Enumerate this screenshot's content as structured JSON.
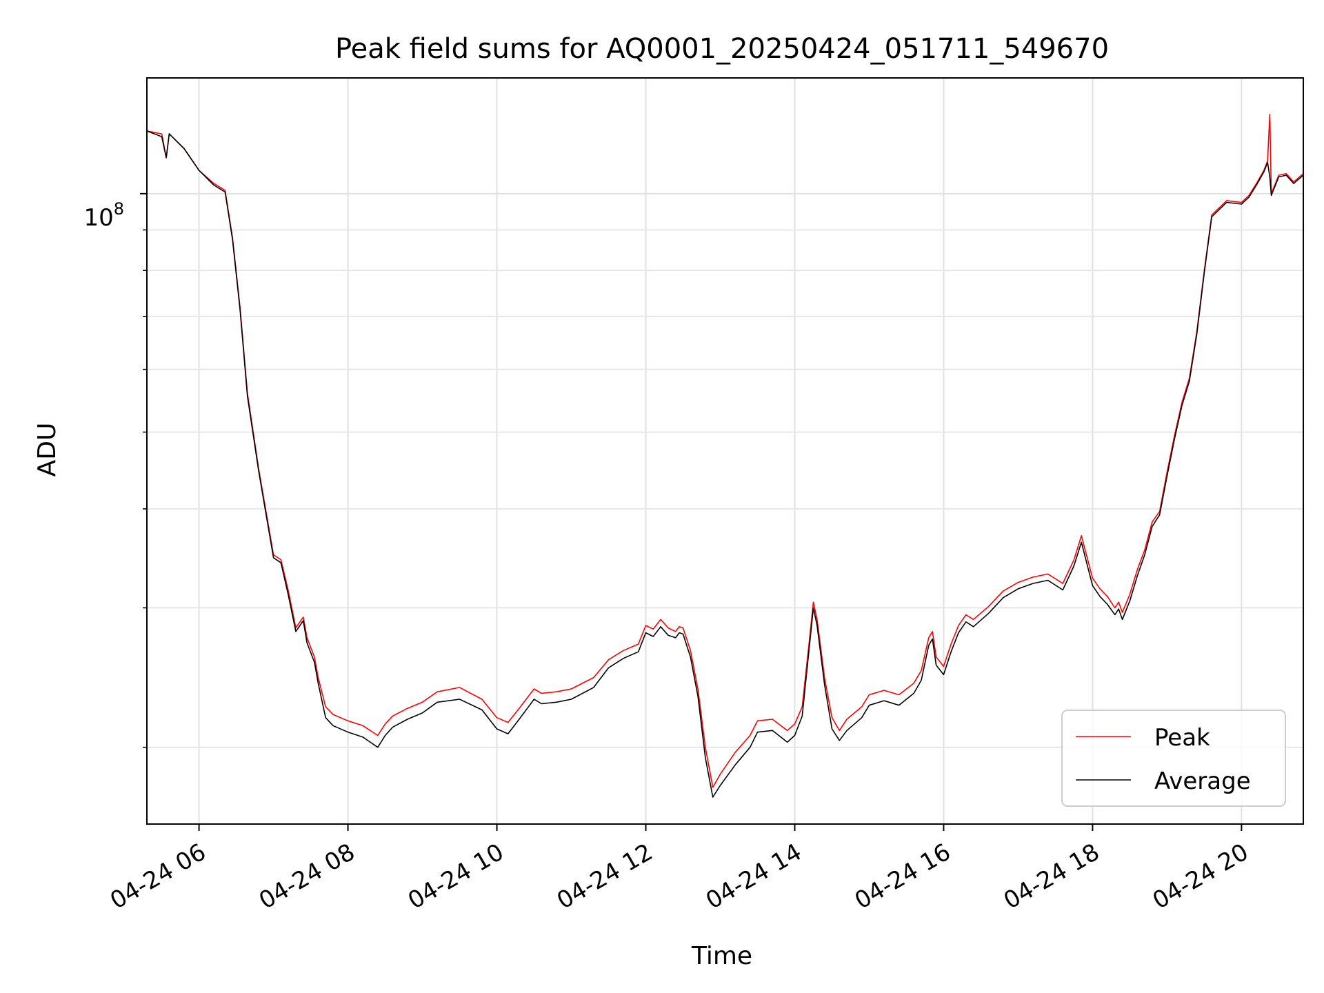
{
  "chart_data": {
    "type": "line",
    "title": "Peak field sums for AQ0001_20250424_051711_549670",
    "xlabel": "Time",
    "ylabel": "ADU",
    "yscale": "log",
    "grid": true,
    "legend_placement": "lower-right",
    "x_unit": "hours of day (2025-04-24)",
    "xlim": [
      5.3,
      20.83
    ],
    "ylim": [
      16000000,
      140000000
    ],
    "x_ticks": [
      6,
      8,
      10,
      12,
      14,
      16,
      18,
      20
    ],
    "x_tick_labels": [
      "04-24 06",
      "04-24 08",
      "04-24 10",
      "04-24 12",
      "04-24 14",
      "04-24 16",
      "04-24 18",
      "04-24 20"
    ],
    "y_major_ticks": [
      100000000
    ],
    "y_major_tick_base": "10",
    "y_major_tick_exp": "8",
    "y_minor_ticks": [
      20000000,
      30000000,
      40000000,
      50000000,
      60000000,
      70000000,
      80000000,
      90000000
    ],
    "colors": {
      "Peak": "#ff0000",
      "Average": "#000000"
    },
    "x": [
      5.3,
      5.5,
      5.56,
      5.6,
      5.8,
      6.0,
      6.2,
      6.35,
      6.45,
      6.55,
      6.65,
      6.8,
      7.0,
      7.1,
      7.2,
      7.3,
      7.4,
      7.45,
      7.55,
      7.6,
      7.7,
      7.8,
      8.0,
      8.2,
      8.4,
      8.5,
      8.6,
      8.8,
      9.0,
      9.2,
      9.5,
      9.8,
      10.0,
      10.15,
      10.3,
      10.5,
      10.6,
      10.8,
      11.0,
      11.3,
      11.5,
      11.7,
      11.9,
      12.0,
      12.1,
      12.2,
      12.3,
      12.4,
      12.45,
      12.5,
      12.6,
      12.7,
      12.8,
      12.9,
      13.0,
      13.2,
      13.4,
      13.5,
      13.7,
      13.9,
      14.0,
      14.1,
      14.2,
      14.25,
      14.3,
      14.4,
      14.5,
      14.6,
      14.7,
      14.9,
      15.0,
      15.2,
      15.4,
      15.6,
      15.7,
      15.8,
      15.85,
      15.9,
      16.0,
      16.1,
      16.2,
      16.3,
      16.4,
      16.6,
      16.8,
      17.0,
      17.2,
      17.4,
      17.6,
      17.7,
      17.75,
      17.85,
      17.9,
      18.0,
      18.1,
      18.2,
      18.3,
      18.35,
      18.4,
      18.5,
      18.6,
      18.7,
      18.8,
      18.9,
      19.0,
      19.1,
      19.2,
      19.3,
      19.4,
      19.5,
      19.6,
      19.8,
      20.0,
      20.1,
      20.2,
      20.3,
      20.35,
      20.38,
      20.4,
      20.5,
      20.6,
      20.7,
      20.83
    ],
    "series": [
      {
        "name": "Peak",
        "values": [
          120000000,
          119000000,
          111000000,
          119000000,
          114000000,
          107000000,
          103000000,
          101000000,
          88000000,
          72000000,
          56000000,
          45000000,
          35000000,
          34500000,
          31500000,
          28300000,
          29200000,
          27500000,
          26000000,
          24500000,
          22500000,
          22000000,
          21600000,
          21300000,
          20700000,
          21400000,
          21900000,
          22400000,
          22800000,
          23500000,
          23800000,
          23000000,
          21800000,
          21500000,
          22400000,
          23700000,
          23400000,
          23500000,
          23700000,
          24500000,
          25800000,
          26500000,
          27000000,
          28500000,
          28200000,
          29000000,
          28300000,
          28000000,
          28400000,
          28300000,
          26500000,
          23700000,
          20000000,
          17800000,
          18500000,
          19700000,
          20700000,
          21600000,
          21700000,
          21000000,
          21400000,
          22500000,
          27500000,
          30500000,
          29000000,
          24500000,
          21800000,
          21000000,
          21700000,
          22500000,
          23300000,
          23600000,
          23300000,
          24100000,
          25000000,
          27500000,
          28000000,
          26000000,
          25300000,
          27000000,
          28500000,
          29400000,
          29000000,
          30100000,
          31500000,
          32300000,
          32800000,
          33100000,
          32200000,
          33700000,
          34500000,
          37000000,
          35500000,
          32700000,
          31700000,
          31000000,
          30000000,
          30500000,
          29600000,
          31200000,
          33500000,
          35500000,
          38500000,
          39700000,
          44500000,
          49500000,
          54500000,
          58500000,
          67000000,
          80000000,
          94000000,
          98000000,
          97500000,
          99500000,
          103000000,
          107000000,
          110000000,
          126000000,
          100000000,
          105500000,
          106000000,
          103500000,
          106000000
        ]
      },
      {
        "name": "Average",
        "values": [
          120000000,
          118000000,
          111000000,
          119000000,
          114000000,
          107000000,
          102500000,
          100500000,
          87500000,
          71500000,
          55500000,
          44700000,
          34700000,
          34200000,
          31100000,
          28000000,
          28900000,
          27100000,
          25600000,
          24100000,
          21800000,
          21300000,
          20900000,
          20600000,
          20000000,
          20700000,
          21200000,
          21700000,
          22100000,
          22800000,
          23000000,
          22300000,
          21100000,
          20800000,
          21700000,
          23000000,
          22700000,
          22800000,
          23000000,
          23800000,
          25200000,
          25900000,
          26400000,
          27900000,
          27600000,
          28400000,
          27700000,
          27500000,
          27900000,
          27800000,
          26000000,
          23200000,
          19400000,
          17300000,
          17900000,
          19000000,
          20000000,
          20900000,
          21000000,
          20300000,
          20700000,
          21900000,
          27000000,
          30000000,
          28500000,
          24000000,
          21100000,
          20400000,
          21000000,
          21800000,
          22600000,
          22900000,
          22600000,
          23400000,
          24300000,
          26900000,
          27400000,
          25400000,
          24700000,
          26400000,
          27900000,
          28800000,
          28400000,
          29500000,
          30900000,
          31700000,
          32200000,
          32500000,
          31600000,
          33100000,
          33900000,
          36300000,
          34800000,
          32000000,
          31000000,
          30300000,
          29400000,
          29900000,
          29000000,
          30600000,
          32900000,
          35000000,
          38000000,
          39300000,
          44000000,
          49000000,
          54000000,
          58000000,
          66500000,
          79500000,
          93500000,
          97500000,
          97000000,
          99000000,
          102500000,
          106500000,
          109500000,
          105000000,
          99500000,
          105000000,
          105500000,
          103000000,
          105500000
        ]
      }
    ]
  }
}
